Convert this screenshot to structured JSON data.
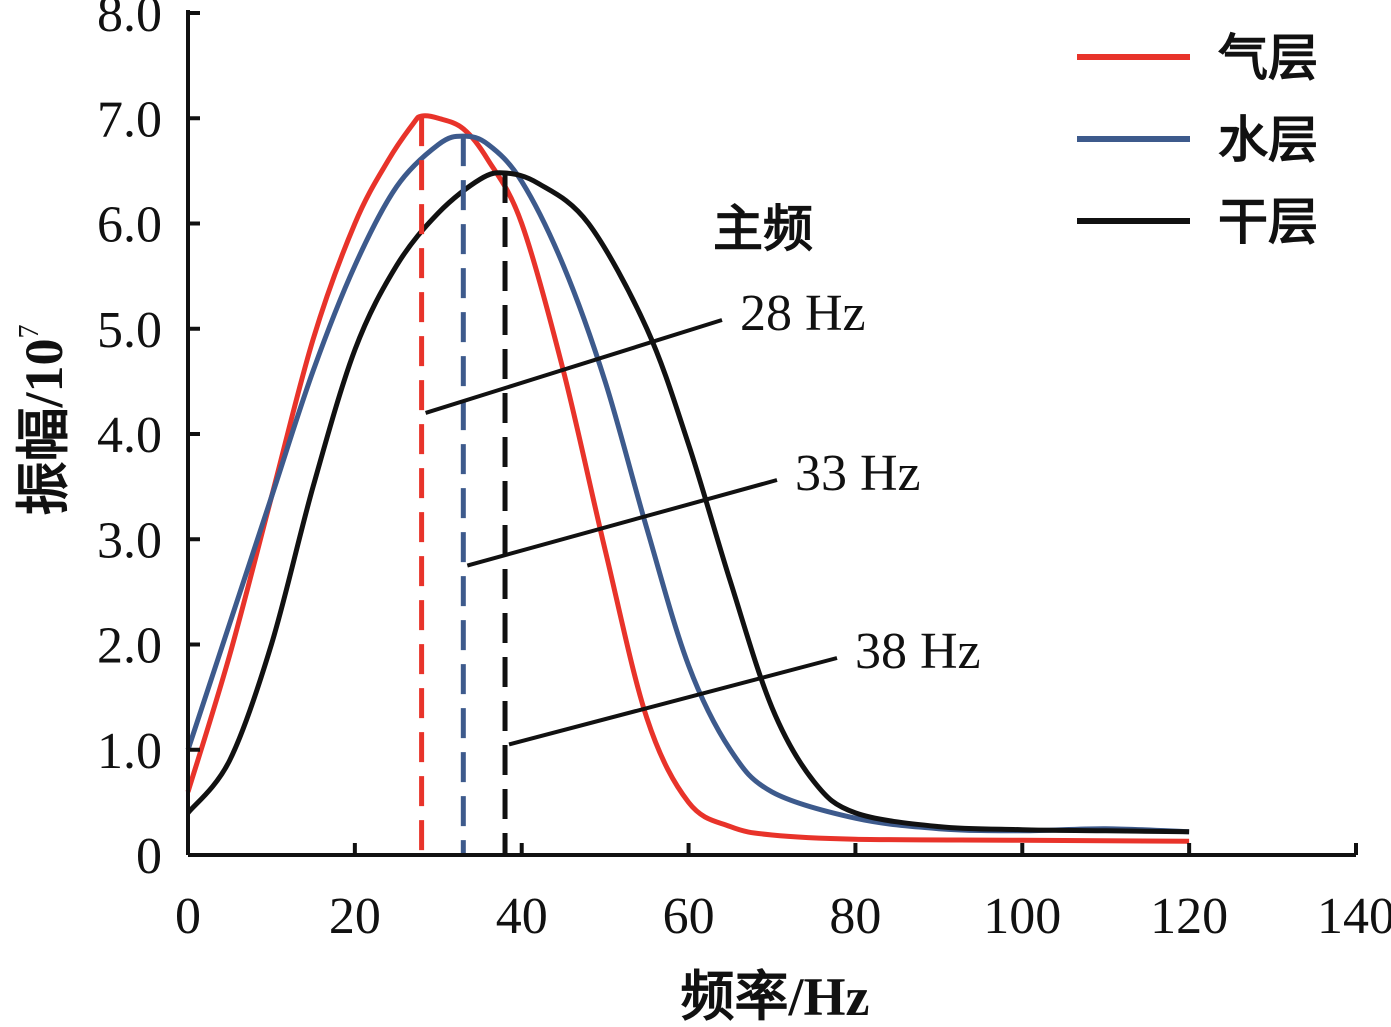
{
  "chart_data": {
    "type": "line",
    "xlabel": "频率/Hz",
    "ylabel": "振幅/10",
    "ylabel_exponent": "7",
    "xlim": [
      0,
      140
    ],
    "ylim": [
      0,
      8.0
    ],
    "x_ticks": [
      0,
      20,
      40,
      60,
      80,
      100,
      120,
      140
    ],
    "y_ticks": [
      0,
      1.0,
      2.0,
      3.0,
      4.0,
      5.0,
      6.0,
      7.0,
      8.0
    ],
    "y_tick_labels": [
      "0",
      "1.0",
      "2.0",
      "3.0",
      "4.0",
      "5.0",
      "6.0",
      "7.0",
      "8.0"
    ],
    "x_tick_labels": [
      "0",
      "20",
      "40",
      "60",
      "80",
      "100",
      "120",
      "140"
    ],
    "legend_position": "top-right",
    "grid": false,
    "series": [
      {
        "name": "气层",
        "color": "#e8332a",
        "x": [
          0,
          5,
          10,
          15,
          20,
          24,
          27,
          28,
          30,
          33,
          36,
          40,
          45,
          50,
          55,
          60,
          65,
          70,
          80,
          100,
          120
        ],
        "y": [
          0.6,
          1.9,
          3.4,
          4.9,
          6.0,
          6.6,
          6.95,
          7.02,
          7.0,
          6.9,
          6.6,
          6.0,
          4.6,
          2.9,
          1.3,
          0.5,
          0.27,
          0.19,
          0.15,
          0.14,
          0.13
        ]
      },
      {
        "name": "水层",
        "color": "#3d5a8c",
        "x": [
          0,
          5,
          10,
          15,
          20,
          25,
          30,
          33,
          36,
          40,
          45,
          50,
          55,
          60,
          65,
          70,
          80,
          90,
          100,
          110,
          120
        ],
        "y": [
          1.0,
          2.2,
          3.4,
          4.6,
          5.6,
          6.35,
          6.75,
          6.83,
          6.75,
          6.4,
          5.6,
          4.5,
          3.1,
          1.8,
          1.0,
          0.6,
          0.35,
          0.25,
          0.23,
          0.25,
          0.22
        ]
      },
      {
        "name": "干层",
        "color": "#111111",
        "x": [
          0,
          5,
          10,
          15,
          20,
          25,
          30,
          35,
          38,
          42,
          48,
          55,
          60,
          65,
          70,
          75,
          80,
          90,
          100,
          110,
          120
        ],
        "y": [
          0.4,
          0.9,
          2.0,
          3.5,
          4.8,
          5.6,
          6.1,
          6.42,
          6.48,
          6.38,
          6.0,
          5.0,
          3.9,
          2.6,
          1.4,
          0.7,
          0.4,
          0.27,
          0.24,
          0.23,
          0.22
        ]
      }
    ],
    "reference_lines": [
      {
        "x": 28,
        "series": "气层",
        "peak": 7.02
      },
      {
        "x": 33,
        "series": "水层",
        "peak": 6.83
      },
      {
        "x": 38,
        "series": "干层",
        "peak": 6.48
      }
    ],
    "annotation_title": "主频",
    "annotations": [
      {
        "label": "28 Hz",
        "target_x": 28,
        "target_y": 4.2
      },
      {
        "label": "33 Hz",
        "target_x": 33,
        "target_y": 2.75
      },
      {
        "label": "38 Hz",
        "target_x": 38,
        "target_y": 1.05
      }
    ]
  }
}
